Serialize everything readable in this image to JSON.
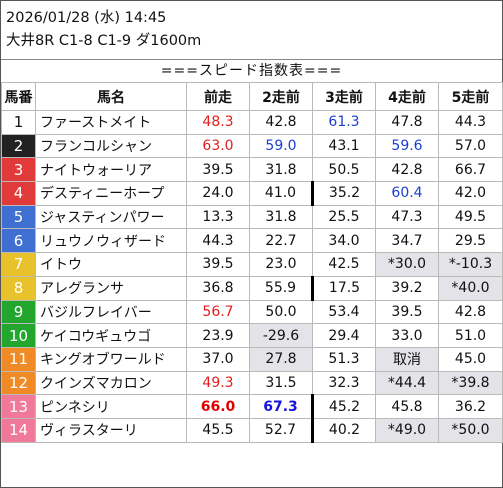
{
  "header": {
    "date_line": "2026/01/28 (水) 14:45",
    "race_line": "大井8R C1-8 C1-9 ダ1600m"
  },
  "banner": "===スピード指数表===",
  "columns": [
    "馬番",
    "馬名",
    "前走",
    "2走前",
    "3走前",
    "4走前",
    "5走前"
  ],
  "rows": [
    {
      "num": "1",
      "bg": "#ffffff",
      "fg": "#111111",
      "name": "ファーストメイト",
      "v": [
        "48.3",
        "42.8",
        "61.3",
        "47.8",
        "44.3"
      ]
    },
    {
      "num": "2",
      "bg": "#222222",
      "fg": "#ffffff",
      "name": "フランコルシャン",
      "v": [
        "63.0",
        "59.0",
        "43.1",
        "59.6",
        "57.0"
      ]
    },
    {
      "num": "3",
      "bg": "#e03a3a",
      "fg": "#ffffff",
      "name": "ナイトウォーリア",
      "v": [
        "39.5",
        "31.8",
        "50.5",
        "42.8",
        "66.7"
      ]
    },
    {
      "num": "4",
      "bg": "#e03a3a",
      "fg": "#ffffff",
      "name": "デスティニーホープ",
      "v": [
        "24.0",
        "41.0",
        "35.2",
        "60.4",
        "42.0"
      ]
    },
    {
      "num": "5",
      "bg": "#3f6fd1",
      "fg": "#ffffff",
      "name": "ジャスティンパワー",
      "v": [
        "13.3",
        "31.8",
        "25.5",
        "47.3",
        "49.5"
      ]
    },
    {
      "num": "6",
      "bg": "#3f6fd1",
      "fg": "#ffffff",
      "name": "リュウノウィザード",
      "v": [
        "44.3",
        "22.7",
        "34.0",
        "34.7",
        "29.5"
      ]
    },
    {
      "num": "7",
      "bg": "#e8c22a",
      "fg": "#ffffff",
      "name": "イトウ",
      "v": [
        "39.5",
        "23.0",
        "42.5",
        "*30.0",
        "*-10.3"
      ]
    },
    {
      "num": "8",
      "bg": "#e8c22a",
      "fg": "#ffffff",
      "name": "アレグランサ",
      "v": [
        "36.8",
        "55.9",
        "17.5",
        "39.2",
        "*40.0"
      ]
    },
    {
      "num": "9",
      "bg": "#22a62e",
      "fg": "#ffffff",
      "name": "バジルフレイバー",
      "v": [
        "56.7",
        "50.0",
        "53.4",
        "39.5",
        "42.8"
      ]
    },
    {
      "num": "10",
      "bg": "#22a62e",
      "fg": "#ffffff",
      "name": "ケイコウギュウゴ",
      "v": [
        "23.9",
        "-29.6",
        "29.4",
        "33.0",
        "51.0"
      ]
    },
    {
      "num": "11",
      "bg": "#f08a24",
      "fg": "#ffffff",
      "name": "キングオブワールド",
      "v": [
        "37.0",
        "27.8",
        "51.3",
        "取消",
        "45.0"
      ]
    },
    {
      "num": "12",
      "bg": "#f08a24",
      "fg": "#ffffff",
      "name": "クインズマカロン",
      "v": [
        "49.3",
        "31.5",
        "32.3",
        "*44.4",
        "*39.8"
      ]
    },
    {
      "num": "13",
      "bg": "#f07898",
      "fg": "#ffffff",
      "name": "ピンネシリ",
      "v": [
        "66.0",
        "67.3",
        "45.2",
        "45.8",
        "36.2"
      ]
    },
    {
      "num": "14",
      "bg": "#f07898",
      "fg": "#ffffff",
      "name": "ヴィラスターリ",
      "v": [
        "45.5",
        "52.7",
        "40.2",
        "*49.0",
        "*50.0"
      ]
    }
  ]
}
